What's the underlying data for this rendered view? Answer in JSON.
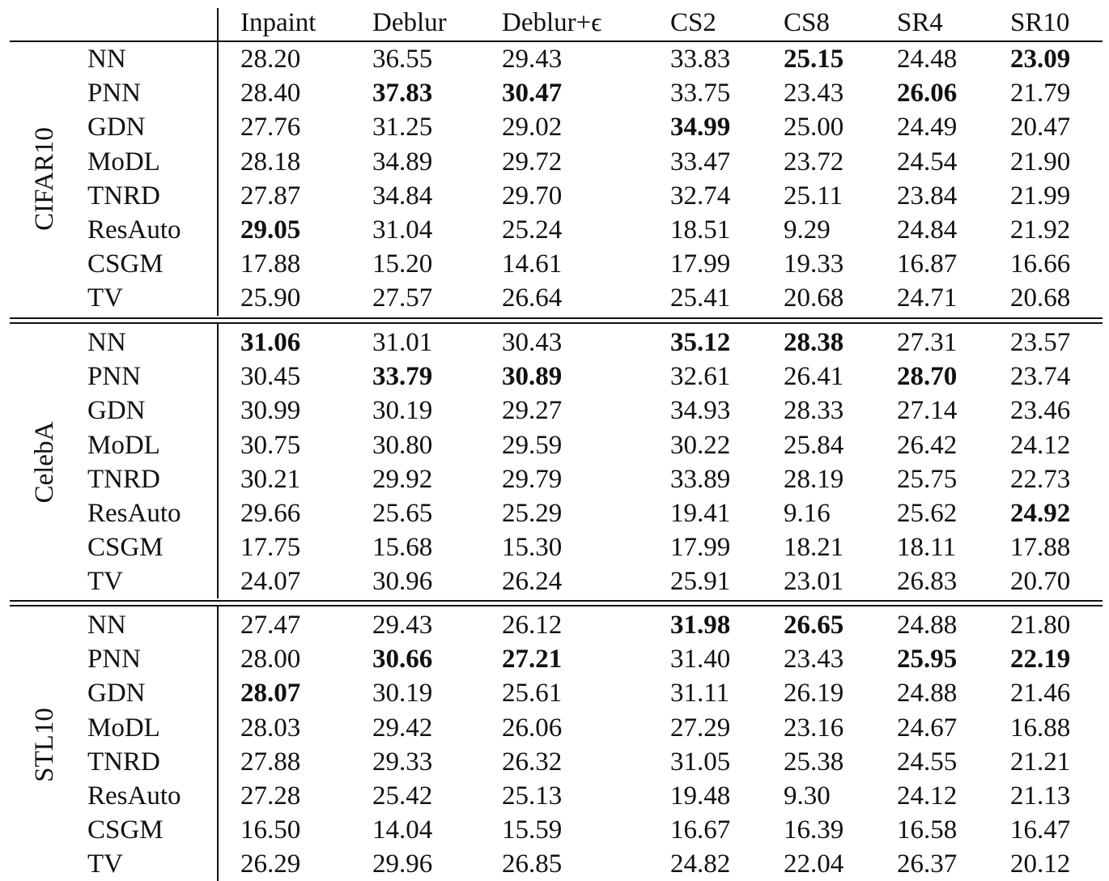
{
  "table": {
    "columns": [
      "Inpaint",
      "Deblur",
      "Deblur+ϵ",
      "CS2",
      "CS8",
      "SR4",
      "SR10"
    ],
    "groups": [
      {
        "name": "CIFAR10",
        "rows": [
          {
            "method": "NN",
            "values": [
              "28.20",
              "36.55",
              "29.43",
              "33.83",
              "25.15",
              "24.48",
              "23.09"
            ],
            "bold": [
              false,
              false,
              false,
              false,
              true,
              false,
              true
            ]
          },
          {
            "method": "PNN",
            "values": [
              "28.40",
              "37.83",
              "30.47",
              "33.75",
              "23.43",
              "26.06",
              "21.79"
            ],
            "bold": [
              false,
              true,
              true,
              false,
              false,
              true,
              false
            ]
          },
          {
            "method": "GDN",
            "values": [
              "27.76",
              "31.25",
              "29.02",
              "34.99",
              "25.00",
              "24.49",
              "20.47"
            ],
            "bold": [
              false,
              false,
              false,
              true,
              false,
              false,
              false
            ]
          },
          {
            "method": "MoDL",
            "values": [
              "28.18",
              "34.89",
              "29.72",
              "33.47",
              "23.72",
              "24.54",
              "21.90"
            ],
            "bold": [
              false,
              false,
              false,
              false,
              false,
              false,
              false
            ]
          },
          {
            "method": "TNRD",
            "values": [
              "27.87",
              "34.84",
              "29.70",
              "32.74",
              "25.11",
              "23.84",
              "21.99"
            ],
            "bold": [
              false,
              false,
              false,
              false,
              false,
              false,
              false
            ]
          },
          {
            "method": "ResAuto",
            "values": [
              "29.05",
              "31.04",
              "25.24",
              "18.51",
              "9.29",
              "24.84",
              "21.92"
            ],
            "bold": [
              true,
              false,
              false,
              false,
              false,
              false,
              false
            ]
          },
          {
            "method": "CSGM",
            "values": [
              "17.88",
              "15.20",
              "14.61",
              "17.99",
              "19.33",
              "16.87",
              "16.66"
            ],
            "bold": [
              false,
              false,
              false,
              false,
              false,
              false,
              false
            ]
          },
          {
            "method": "TV",
            "values": [
              "25.90",
              "27.57",
              "26.64",
              "25.41",
              "20.68",
              "24.71",
              "20.68"
            ],
            "bold": [
              false,
              false,
              false,
              false,
              false,
              false,
              false
            ]
          }
        ]
      },
      {
        "name": "CelebA",
        "rows": [
          {
            "method": "NN",
            "values": [
              "31.06",
              "31.01",
              "30.43",
              "35.12",
              "28.38",
              "27.31",
              "23.57"
            ],
            "bold": [
              true,
              false,
              false,
              true,
              true,
              false,
              false
            ]
          },
          {
            "method": "PNN",
            "values": [
              "30.45",
              "33.79",
              "30.89",
              "32.61",
              "26.41",
              "28.70",
              "23.74"
            ],
            "bold": [
              false,
              true,
              true,
              false,
              false,
              true,
              false
            ]
          },
          {
            "method": "GDN",
            "values": [
              "30.99",
              "30.19",
              "29.27",
              "34.93",
              "28.33",
              "27.14",
              "23.46"
            ],
            "bold": [
              false,
              false,
              false,
              false,
              false,
              false,
              false
            ]
          },
          {
            "method": "MoDL",
            "values": [
              "30.75",
              "30.80",
              "29.59",
              "30.22",
              "25.84",
              "26.42",
              "24.12"
            ],
            "bold": [
              false,
              false,
              false,
              false,
              false,
              false,
              false
            ]
          },
          {
            "method": "TNRD",
            "values": [
              "30.21",
              "29.92",
              "29.79",
              "33.89",
              "28.19",
              "25.75",
              "22.73"
            ],
            "bold": [
              false,
              false,
              false,
              false,
              false,
              false,
              false
            ]
          },
          {
            "method": "ResAuto",
            "values": [
              "29.66",
              "25.65",
              "25.29",
              "19.41",
              "9.16",
              "25.62",
              "24.92"
            ],
            "bold": [
              false,
              false,
              false,
              false,
              false,
              false,
              true
            ]
          },
          {
            "method": "CSGM",
            "values": [
              "17.75",
              "15.68",
              "15.30",
              "17.99",
              "18.21",
              "18.11",
              "17.88"
            ],
            "bold": [
              false,
              false,
              false,
              false,
              false,
              false,
              false
            ]
          },
          {
            "method": "TV",
            "values": [
              "24.07",
              "30.96",
              "26.24",
              "25.91",
              "23.01",
              "26.83",
              "20.70"
            ],
            "bold": [
              false,
              false,
              false,
              false,
              false,
              false,
              false
            ]
          }
        ]
      },
      {
        "name": "STL10",
        "rows": [
          {
            "method": "NN",
            "values": [
              "27.47",
              "29.43",
              "26.12",
              "31.98",
              "26.65",
              "24.88",
              "21.80"
            ],
            "bold": [
              false,
              false,
              false,
              true,
              true,
              false,
              false
            ]
          },
          {
            "method": "PNN",
            "values": [
              "28.00",
              "30.66",
              "27.21",
              "31.40",
              "23.43",
              "25.95",
              "22.19"
            ],
            "bold": [
              false,
              true,
              true,
              false,
              false,
              true,
              true
            ]
          },
          {
            "method": "GDN",
            "values": [
              "28.07",
              "30.19",
              "25.61",
              "31.11",
              "26.19",
              "24.88",
              "21.46"
            ],
            "bold": [
              true,
              false,
              false,
              false,
              false,
              false,
              false
            ]
          },
          {
            "method": "MoDL",
            "values": [
              "28.03",
              "29.42",
              "26.06",
              "27.29",
              "23.16",
              "24.67",
              "16.88"
            ],
            "bold": [
              false,
              false,
              false,
              false,
              false,
              false,
              false
            ]
          },
          {
            "method": "TNRD",
            "values": [
              "27.88",
              "29.33",
              "26.32",
              "31.05",
              "25.38",
              "24.55",
              "21.21"
            ],
            "bold": [
              false,
              false,
              false,
              false,
              false,
              false,
              false
            ]
          },
          {
            "method": "ResAuto",
            "values": [
              "27.28",
              "25.42",
              "25.13",
              "19.48",
              "9.30",
              "24.12",
              "21.13"
            ],
            "bold": [
              false,
              false,
              false,
              false,
              false,
              false,
              false
            ]
          },
          {
            "method": "CSGM",
            "values": [
              "16.50",
              "14.04",
              "15.59",
              "16.67",
              "16.39",
              "16.58",
              "16.47"
            ],
            "bold": [
              false,
              false,
              false,
              false,
              false,
              false,
              false
            ]
          },
          {
            "method": "TV",
            "values": [
              "26.29",
              "29.96",
              "26.85",
              "24.82",
              "22.04",
              "26.37",
              "20.12"
            ],
            "bold": [
              false,
              false,
              false,
              false,
              false,
              false,
              false
            ]
          }
        ]
      }
    ]
  }
}
